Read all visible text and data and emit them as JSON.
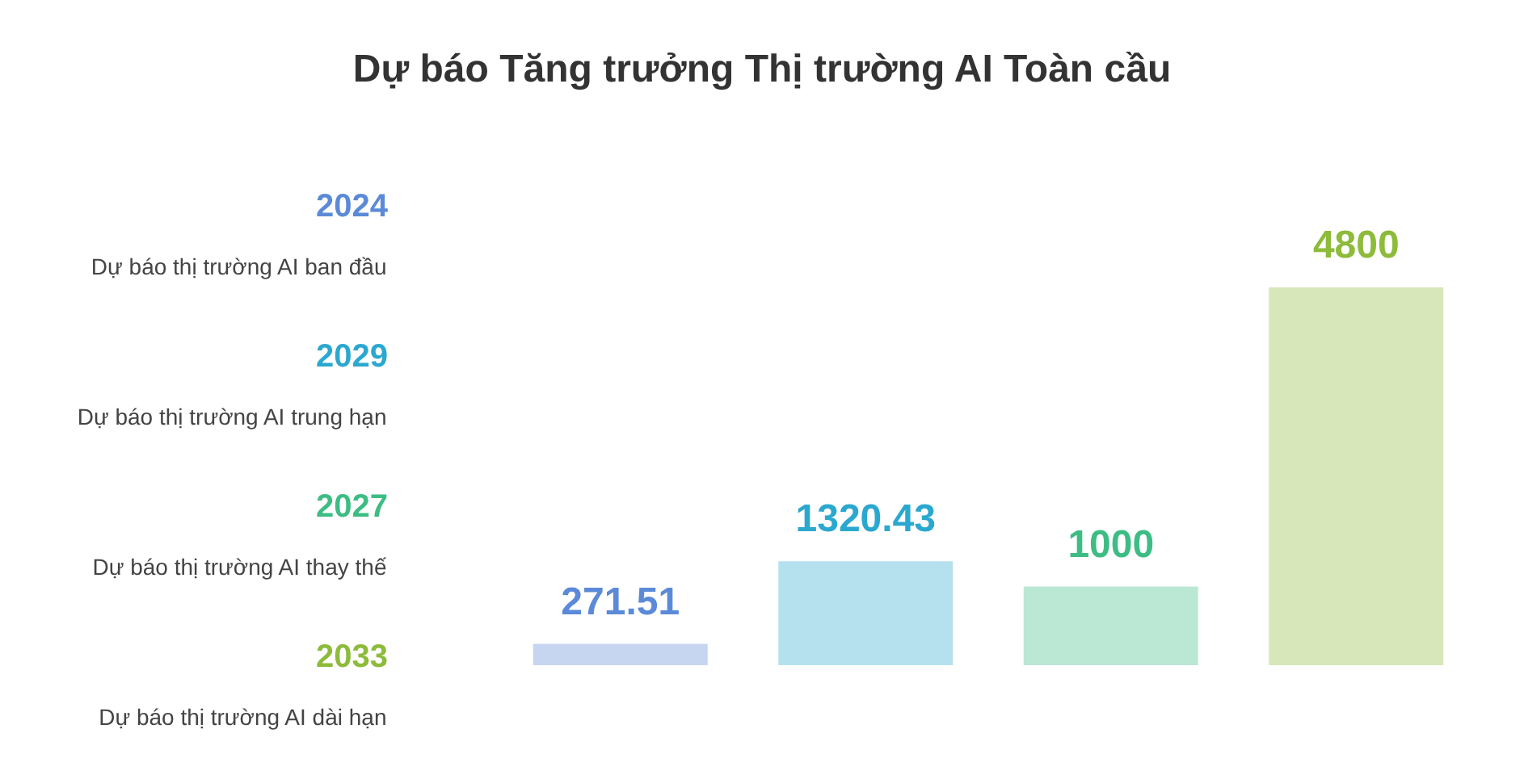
{
  "chart_data": {
    "type": "bar",
    "title": "Dự báo Tăng trưởng Thị trường AI Toàn cầu",
    "categories": [
      null,
      null,
      null,
      null
    ],
    "series": [
      {
        "name": "2024",
        "color": "#5b8ad8",
        "values": [
          271.51,
          null,
          null,
          null
        ]
      },
      {
        "name": "2029",
        "color": "#2ba8cf",
        "values": [
          null,
          1320.43,
          null,
          null
        ]
      },
      {
        "name": "2027",
        "color": "#3dbd84",
        "values": [
          null,
          null,
          1000,
          null
        ]
      },
      {
        "name": "2033",
        "color": "#8dbb3a",
        "values": [
          null,
          null,
          null,
          4800
        ]
      }
    ],
    "annotations": [
      "Dự báo thị trường AI ban đầu",
      "Dự báo thị trường AI trung hạn",
      "Dự báo thị trường AI thay thế",
      "Dự báo thị trường AI dài hạn"
    ],
    "stacked": true,
    "data_labels": true,
    "legend": "left",
    "tick_labels": false
  }
}
